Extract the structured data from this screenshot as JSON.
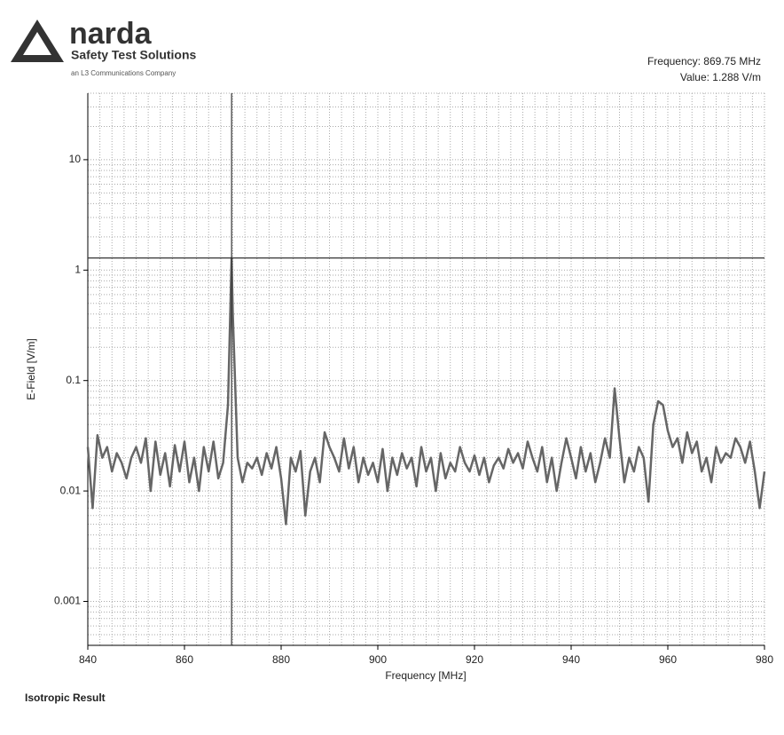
{
  "logo": {
    "brand": "narda",
    "tagline": "Safety Test Solutions",
    "company": "an L3 Communications Company"
  },
  "footer": "Isotropic Result",
  "chart_data": {
    "type": "line",
    "x_label": "Frequency [MHz]",
    "y_label": "E-Field [V/m]",
    "cursor": {
      "x": 869.75,
      "y": 1.288,
      "labels": [
        "Frequency: 869.75 MHz",
        "Value: 1.288 V/m"
      ]
    },
    "xlim": [
      840,
      980
    ],
    "xticks": [
      840,
      860,
      880,
      900,
      920,
      940,
      960,
      980
    ],
    "ylim": [
      0.0004,
      40
    ],
    "yticks": [
      0.001,
      0.01,
      0.1,
      1,
      10
    ],
    "log_y": true,
    "grid": true,
    "minor_grid": true,
    "series": [
      {
        "color": "#666666",
        "x": [
          840,
          841,
          842,
          843,
          844,
          845,
          846,
          847,
          848,
          849,
          850,
          851,
          852,
          853,
          854,
          855,
          856,
          857,
          858,
          859,
          860,
          861,
          862,
          863,
          864,
          865,
          866,
          867,
          868,
          869,
          869.75,
          870,
          871,
          872,
          873,
          874,
          875,
          876,
          877,
          878,
          879,
          880,
          881,
          882,
          883,
          884,
          885,
          886,
          887,
          888,
          889,
          890,
          891,
          892,
          893,
          894,
          895,
          896,
          897,
          898,
          899,
          900,
          901,
          902,
          903,
          904,
          905,
          906,
          907,
          908,
          909,
          910,
          911,
          912,
          913,
          914,
          915,
          916,
          917,
          918,
          919,
          920,
          921,
          922,
          923,
          924,
          925,
          926,
          927,
          928,
          929,
          930,
          931,
          932,
          933,
          934,
          935,
          936,
          937,
          938,
          939,
          940,
          941,
          942,
          943,
          944,
          945,
          946,
          947,
          948,
          949,
          950,
          951,
          952,
          953,
          954,
          955,
          956,
          957,
          958,
          959,
          960,
          961,
          962,
          963,
          964,
          965,
          966,
          967,
          968,
          969,
          970,
          971,
          972,
          973,
          974,
          975,
          976,
          977,
          978,
          979,
          980
        ],
        "values": [
          0.025,
          0.007,
          0.032,
          0.02,
          0.025,
          0.015,
          0.022,
          0.018,
          0.013,
          0.02,
          0.025,
          0.018,
          0.03,
          0.01,
          0.028,
          0.014,
          0.022,
          0.011,
          0.026,
          0.015,
          0.028,
          0.012,
          0.02,
          0.01,
          0.025,
          0.015,
          0.028,
          0.013,
          0.018,
          0.06,
          1.288,
          0.4,
          0.02,
          0.012,
          0.018,
          0.016,
          0.02,
          0.014,
          0.022,
          0.016,
          0.025,
          0.013,
          0.005,
          0.02,
          0.015,
          0.023,
          0.006,
          0.015,
          0.02,
          0.012,
          0.034,
          0.025,
          0.02,
          0.015,
          0.03,
          0.016,
          0.025,
          0.012,
          0.02,
          0.014,
          0.018,
          0.012,
          0.024,
          0.01,
          0.02,
          0.014,
          0.022,
          0.016,
          0.02,
          0.011,
          0.025,
          0.015,
          0.02,
          0.01,
          0.022,
          0.013,
          0.018,
          0.015,
          0.025,
          0.018,
          0.015,
          0.021,
          0.014,
          0.02,
          0.012,
          0.017,
          0.02,
          0.016,
          0.024,
          0.018,
          0.022,
          0.016,
          0.028,
          0.02,
          0.015,
          0.025,
          0.012,
          0.02,
          0.01,
          0.018,
          0.03,
          0.02,
          0.013,
          0.025,
          0.015,
          0.022,
          0.012,
          0.018,
          0.03,
          0.02,
          0.085,
          0.03,
          0.012,
          0.02,
          0.015,
          0.025,
          0.02,
          0.008,
          0.04,
          0.065,
          0.06,
          0.035,
          0.025,
          0.03,
          0.018,
          0.034,
          0.022,
          0.028,
          0.015,
          0.02,
          0.012,
          0.025,
          0.018,
          0.022,
          0.02,
          0.03,
          0.025,
          0.018,
          0.028,
          0.015,
          0.007,
          0.015
        ]
      }
    ]
  }
}
